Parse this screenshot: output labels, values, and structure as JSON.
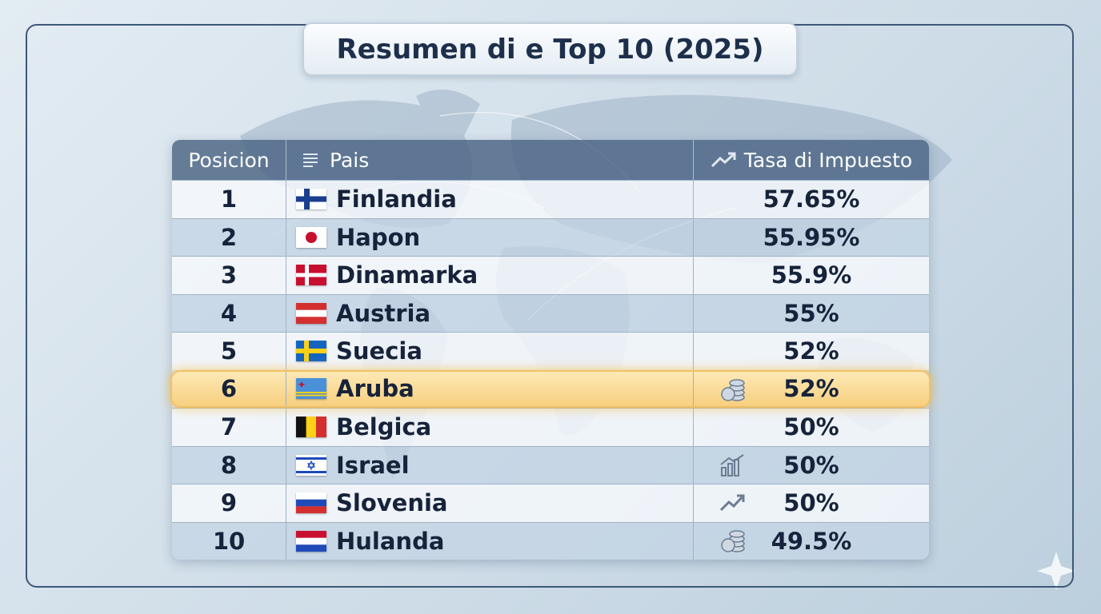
{
  "header": {
    "title": "Resumen di e Top 10 (2025)"
  },
  "table": {
    "columns": [
      "Posicion",
      "Pais",
      "Tasa di Impuesto"
    ],
    "rows": [
      [
        "1",
        "Finlandia",
        "57.65%"
      ],
      [
        "2",
        "Hapon",
        "55.95%"
      ],
      [
        "3",
        "Dinamarka",
        "55.9%"
      ],
      [
        "4",
        "Austria",
        "55%"
      ],
      [
        "5",
        "Suecia",
        "52%"
      ],
      [
        "6",
        "Aruba",
        "52%"
      ],
      [
        "7",
        "Belgica",
        "50%"
      ],
      [
        "8",
        "Israel",
        "50%"
      ],
      [
        "9",
        "Slovenia",
        "50%"
      ],
      [
        "10",
        "Hulanda",
        "49.5%"
      ]
    ]
  }
}
